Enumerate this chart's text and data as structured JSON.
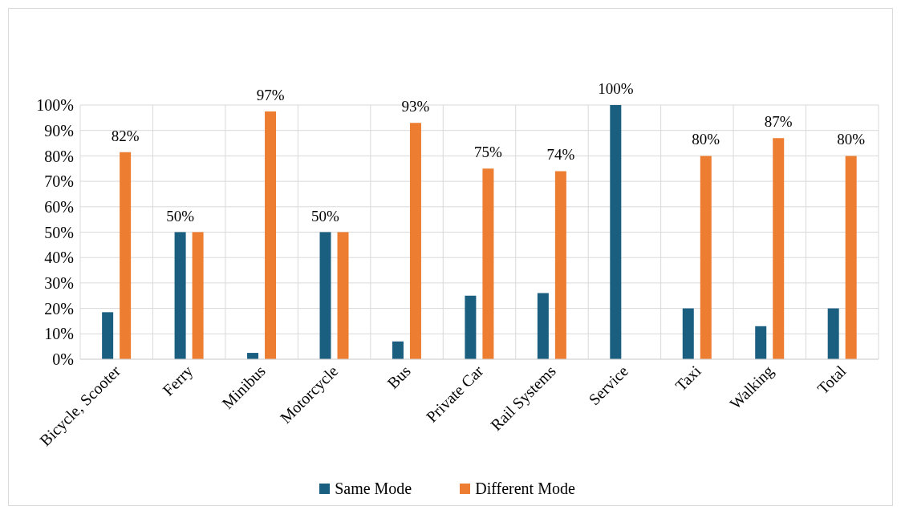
{
  "chart_data": {
    "type": "bar",
    "categories": [
      "Bicycle, Scooter",
      "Ferry",
      "Minibus",
      "Motorcycle",
      "Bus",
      "Private Car",
      "Rail Systems",
      "Service",
      "Taxi",
      "Walking",
      "Total"
    ],
    "series": [
      {
        "name": "Same Mode",
        "color": "#1a5e80",
        "values": [
          18.5,
          50,
          2.5,
          50,
          7,
          25,
          26,
          100,
          20,
          13,
          20
        ],
        "value_labels": [
          null,
          "50%",
          null,
          "50%",
          null,
          null,
          null,
          "100%",
          null,
          null,
          null
        ]
      },
      {
        "name": "Different Mode",
        "color": "#ed7d31",
        "values": [
          81.5,
          50,
          97.5,
          50,
          93,
          75,
          74,
          0,
          80,
          87,
          80
        ],
        "value_labels": [
          "82%",
          null,
          "97%",
          null,
          "93%",
          "75%",
          "74%",
          null,
          "80%",
          "87%",
          "80%"
        ]
      }
    ],
    "ylim": [
      0,
      100
    ],
    "yticks": [
      {
        "value": 0,
        "label": "0%"
      },
      {
        "value": 10,
        "label": "10%"
      },
      {
        "value": 20,
        "label": "20%"
      },
      {
        "value": 30,
        "label": "30%"
      },
      {
        "value": 40,
        "label": "40%"
      },
      {
        "value": 50,
        "label": "50%"
      },
      {
        "value": 60,
        "label": "60%"
      },
      {
        "value": 70,
        "label": "70%"
      },
      {
        "value": 80,
        "label": "80%"
      },
      {
        "value": 90,
        "label": "90%"
      },
      {
        "value": 100,
        "label": "100%"
      }
    ],
    "grid": true,
    "legend": "bottom"
  }
}
